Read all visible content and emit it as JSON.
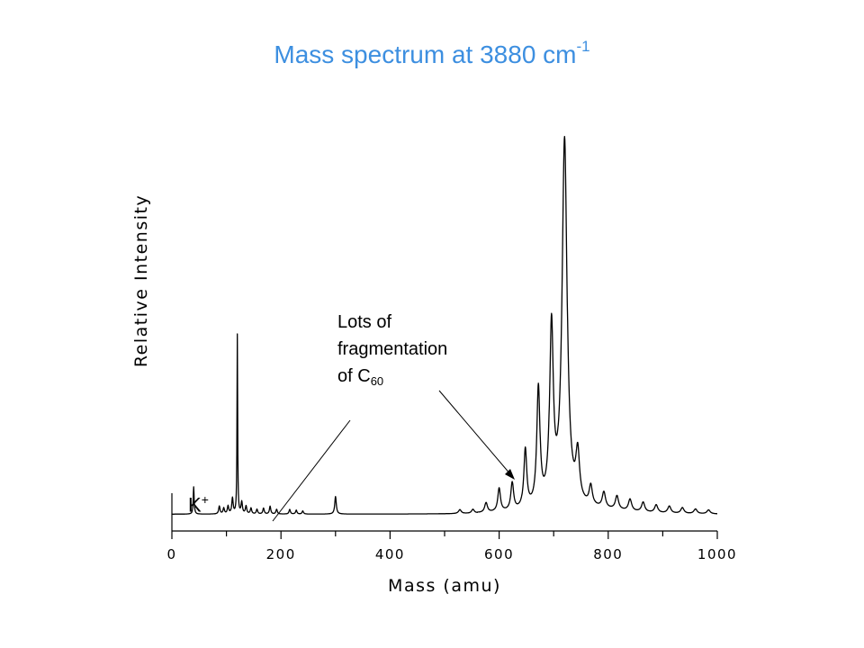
{
  "title": {
    "text": "Mass spectrum at 3880 cm",
    "superscript": "-1"
  },
  "annotations": {
    "fragmentation_line1": "Lots of",
    "fragmentation_line2": "fragmentation",
    "fragmentation_line3_prefix": "of C",
    "fragmentation_line3_subscript": "60",
    "k_label": "K",
    "k_superscript": "+"
  },
  "chart_data": {
    "type": "line",
    "title": "Mass spectrum at 3880 cm-1",
    "xlabel": "Mass (amu)",
    "ylabel": "Relative Intensity",
    "xlim": [
      0,
      1000
    ],
    "ylim": [
      0,
      1
    ],
    "x_ticks": [
      0,
      200,
      400,
      600,
      800,
      1000
    ],
    "grid": false,
    "baseline": 0.02,
    "peaks": [
      {
        "x": 40,
        "height": 0.07,
        "width": 1.0
      },
      {
        "x": 87,
        "height": 0.02,
        "width": 1.5
      },
      {
        "x": 95,
        "height": 0.015,
        "width": 1.5
      },
      {
        "x": 103,
        "height": 0.02,
        "width": 1.5
      },
      {
        "x": 111,
        "height": 0.04,
        "width": 1.5
      },
      {
        "x": 120,
        "height": 0.46,
        "width": 0.7
      },
      {
        "x": 128,
        "height": 0.03,
        "width": 1.5
      },
      {
        "x": 136,
        "height": 0.02,
        "width": 1.5
      },
      {
        "x": 145,
        "height": 0.015,
        "width": 1.5
      },
      {
        "x": 156,
        "height": 0.012,
        "width": 1.5
      },
      {
        "x": 168,
        "height": 0.015,
        "width": 1.5
      },
      {
        "x": 180,
        "height": 0.02,
        "width": 1.5
      },
      {
        "x": 192,
        "height": 0.012,
        "width": 1.5
      },
      {
        "x": 216,
        "height": 0.012,
        "width": 1.5
      },
      {
        "x": 228,
        "height": 0.01,
        "width": 1.5
      },
      {
        "x": 240,
        "height": 0.008,
        "width": 1.5
      },
      {
        "x": 300,
        "height": 0.045,
        "width": 1.7
      },
      {
        "x": 528,
        "height": 0.01,
        "width": 3
      },
      {
        "x": 552,
        "height": 0.01,
        "width": 3
      },
      {
        "x": 576,
        "height": 0.025,
        "width": 3
      },
      {
        "x": 600,
        "height": 0.06,
        "width": 3
      },
      {
        "x": 624,
        "height": 0.07,
        "width": 3
      },
      {
        "x": 648,
        "height": 0.15,
        "width": 3.2
      },
      {
        "x": 672,
        "height": 0.3,
        "width": 3.5
      },
      {
        "x": 696,
        "height": 0.45,
        "width": 4
      },
      {
        "x": 720,
        "height": 0.94,
        "width": 5.5
      },
      {
        "x": 744,
        "height": 0.12,
        "width": 4
      },
      {
        "x": 768,
        "height": 0.05,
        "width": 3.5
      },
      {
        "x": 792,
        "height": 0.04,
        "width": 3.5
      },
      {
        "x": 816,
        "height": 0.035,
        "width": 3.5
      },
      {
        "x": 840,
        "height": 0.03,
        "width": 3.5
      },
      {
        "x": 864,
        "height": 0.025,
        "width": 3.5
      },
      {
        "x": 888,
        "height": 0.02,
        "width": 3.5
      },
      {
        "x": 912,
        "height": 0.018,
        "width": 3.5
      },
      {
        "x": 936,
        "height": 0.015,
        "width": 3.5
      },
      {
        "x": 960,
        "height": 0.012,
        "width": 3.5
      },
      {
        "x": 984,
        "height": 0.01,
        "width": 3.5
      }
    ]
  }
}
